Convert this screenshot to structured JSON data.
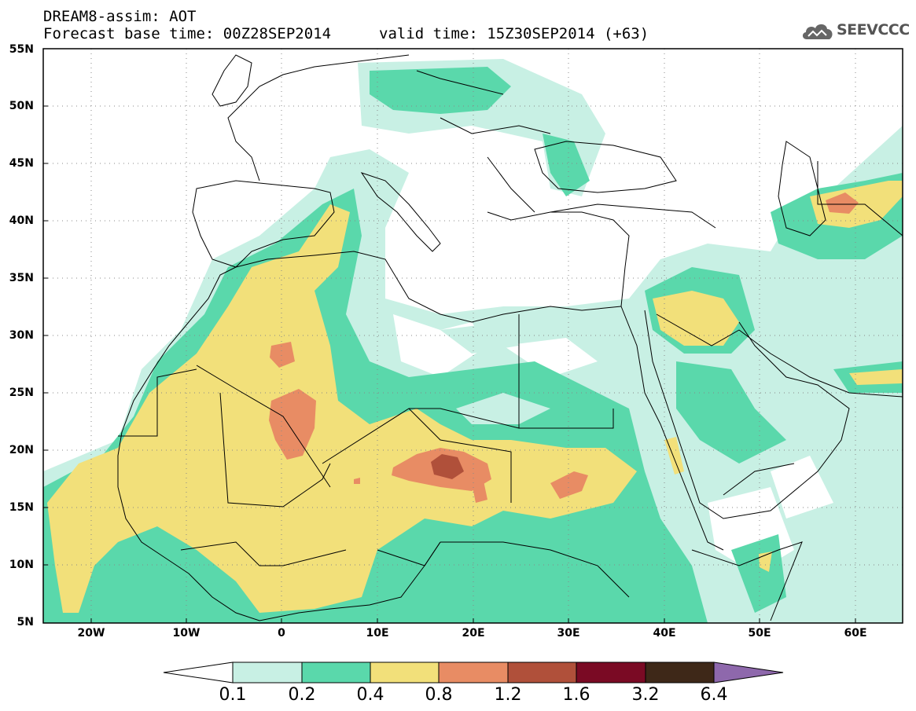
{
  "header": {
    "line1": "DREAM8-assim: AOT",
    "line2": "Forecast base time: 00Z28SEP2014",
    "valid": "valid time: 15Z30SEP2014 (+63)"
  },
  "logo": {
    "text": "SEEVCCC",
    "icon": "cloud-icon"
  },
  "axes": {
    "lat_labels": [
      "55N",
      "50N",
      "45N",
      "40N",
      "35N",
      "30N",
      "25N",
      "20N",
      "15N",
      "10N",
      "5N"
    ],
    "lon_labels": [
      "20W",
      "10W",
      "0",
      "10E",
      "20E",
      "30E",
      "40E",
      "50E",
      "60E"
    ]
  },
  "legend": {
    "levels": [
      "0.1",
      "0.2",
      "0.4",
      "0.8",
      "1.2",
      "1.6",
      "3.2",
      "6.4"
    ],
    "colors": [
      "#c8f0e4",
      "#5ad8ab",
      "#f2e07a",
      "#e88c64",
      "#b0503a",
      "#7a0a24",
      "#3e2818",
      "#8e68ac"
    ]
  }
}
